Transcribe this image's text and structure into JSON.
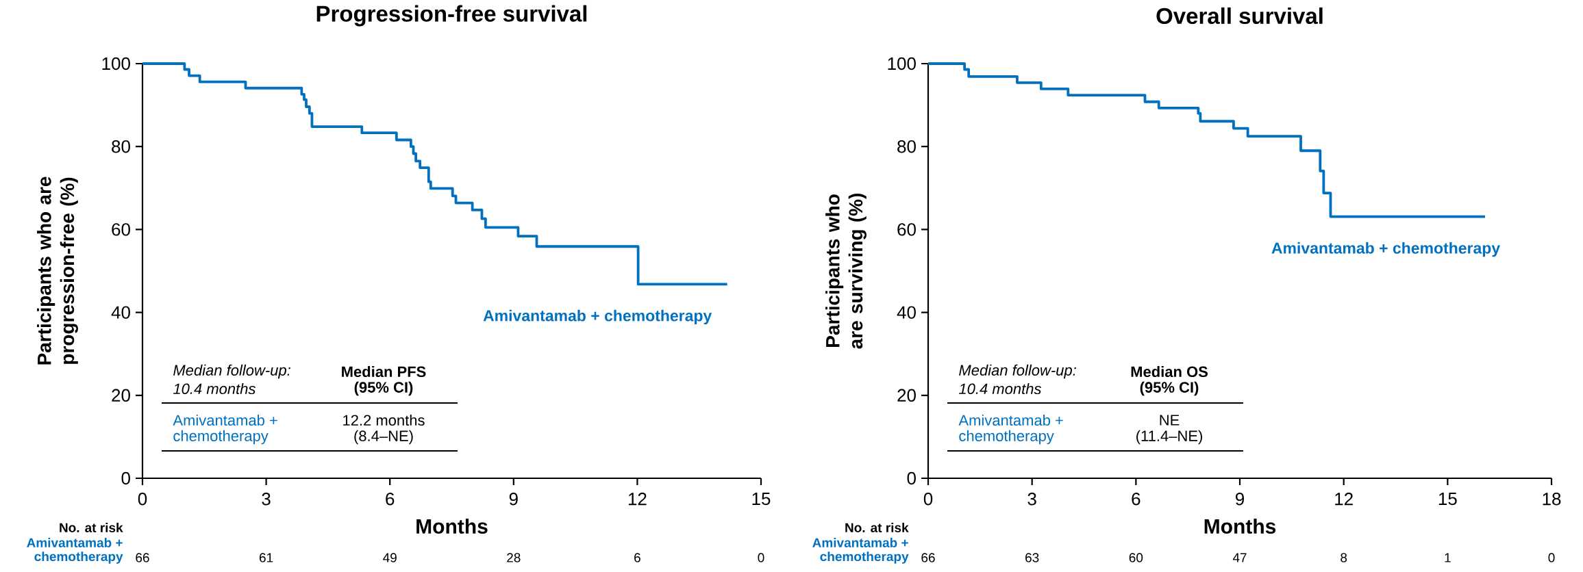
{
  "chart_data": [
    {
      "type": "step",
      "title": "Progression-free survival",
      "xlabel": "Months",
      "ylabel": "Participants who are progression-free (%)",
      "xlim": [
        0,
        15
      ],
      "xticks": [
        0,
        3,
        6,
        9,
        12,
        15
      ],
      "ylim": [
        0,
        100
      ],
      "yticks": [
        0,
        20,
        40,
        60,
        80,
        100
      ],
      "series": [
        {
          "name": "Amivantamab + chemotherapy",
          "color": "#0070c0",
          "x": [
            0,
            1.02,
            1.13,
            1.39,
            2.5,
            3.86,
            3.92,
            3.97,
            4.05,
            4.11,
            5.32,
            6.16,
            6.51,
            6.57,
            6.63,
            6.73,
            6.94,
            6.99,
            7.52,
            7.6,
            8.0,
            8.23,
            8.32,
            9.11,
            9.56,
            12.02,
            14.18
          ],
          "values": [
            100,
            98.6,
            97.1,
            95.6,
            94.1,
            92.6,
            91.3,
            89.6,
            88.0,
            84.8,
            83.3,
            81.6,
            80.0,
            78.3,
            76.5,
            74.9,
            71.5,
            69.9,
            68.1,
            66.4,
            64.7,
            62.6,
            60.5,
            58.4,
            55.9,
            46.8,
            46.8
          ]
        }
      ],
      "annotations": [
        "Median follow-up:",
        "10.4 months",
        "Median PFS",
        "(95% CI)",
        "Amivantamab +",
        "chemotherapy",
        "12.2 months",
        "(8.4–NE)",
        "No. at risk",
        "Amivantamab +",
        "chemotherapy",
        "66",
        "61",
        "49",
        "28",
        "6",
        "0"
      ]
    },
    {
      "type": "step",
      "title": "Overall survival",
      "xlabel": "Months",
      "ylabel": "Participants who are surviving (%)",
      "xlim": [
        0,
        18
      ],
      "xticks": [
        0,
        3,
        6,
        9,
        12,
        15,
        18
      ],
      "ylim": [
        0,
        100
      ],
      "yticks": [
        0,
        20,
        40,
        60,
        80,
        100
      ],
      "series": [
        {
          "name": "Amivantamab + chemotherapy",
          "color": "#0070c0",
          "x": [
            0,
            1.05,
            1.17,
            2.57,
            3.26,
            4.04,
            6.26,
            6.66,
            7.8,
            7.86,
            8.82,
            9.23,
            10.76,
            11.32,
            11.42,
            11.62,
            16.08
          ],
          "values": [
            100,
            98.6,
            96.9,
            95.4,
            93.9,
            92.4,
            90.8,
            89.3,
            88.0,
            86.1,
            84.4,
            82.5,
            79.0,
            74.1,
            68.8,
            63.1,
            63.1
          ]
        }
      ],
      "annotations": [
        "Median follow-up:",
        "10.4 months",
        "Median OS",
        "(95% CI)",
        "Amivantamab +",
        "chemotherapy",
        "NE",
        "(11.4–NE)",
        "No. at risk",
        "Amivantamab +",
        "chemotherapy",
        "66",
        "63",
        "60",
        "47",
        "8",
        "1",
        "0"
      ]
    }
  ]
}
